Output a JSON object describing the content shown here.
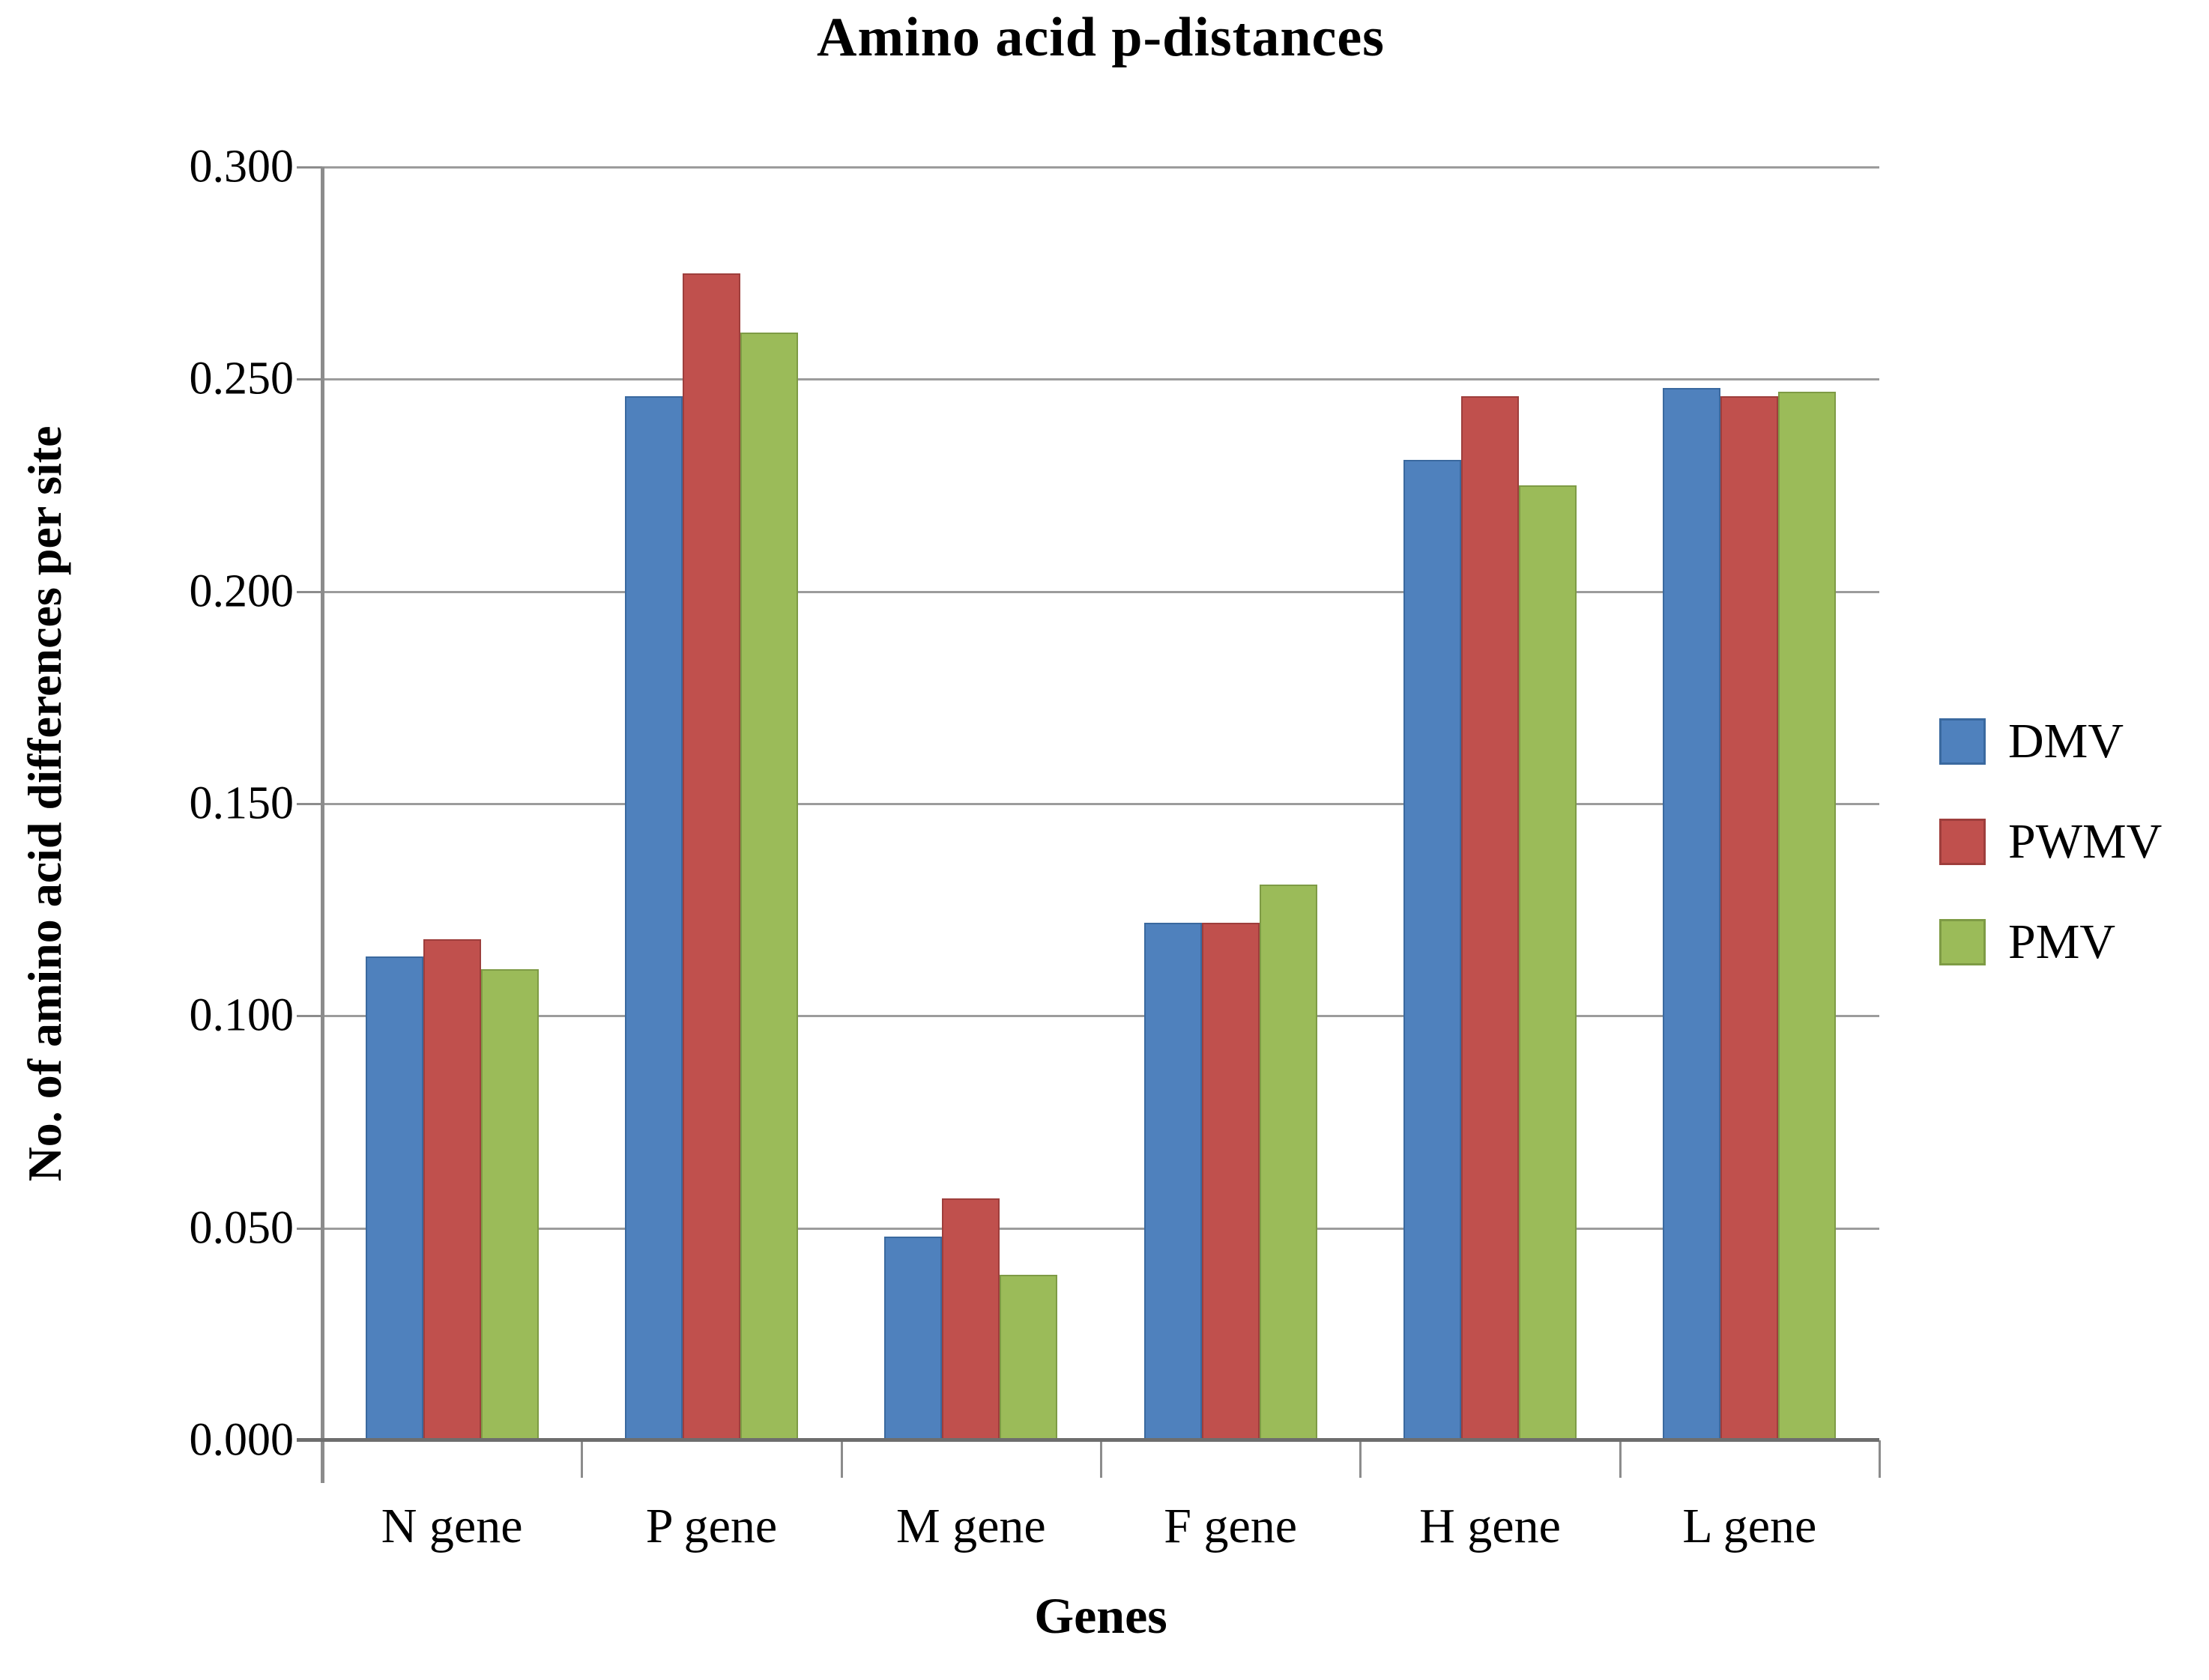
{
  "chart_data": {
    "type": "bar",
    "title": "Amino acid p-distances",
    "xlabel": "Genes",
    "ylabel": "No. of amino acid differences per site",
    "categories": [
      "N gene",
      "P gene",
      "M gene",
      "F gene",
      "H gene",
      "L gene"
    ],
    "series": [
      {
        "name": "DMV",
        "color": "#4F81BD",
        "border_color": "#3A699F",
        "values": [
          0.114,
          0.246,
          0.048,
          0.122,
          0.231,
          0.248
        ]
      },
      {
        "name": "PWMV",
        "color": "#C0504D",
        "border_color": "#9E3E3C",
        "values": [
          0.118,
          0.275,
          0.057,
          0.122,
          0.246,
          0.246
        ]
      },
      {
        "name": "PMV",
        "color": "#9BBB59",
        "border_color": "#7E9B45",
        "values": [
          0.111,
          0.261,
          0.039,
          0.131,
          0.225,
          0.247
        ]
      }
    ],
    "ylim": [
      0,
      0.3
    ],
    "ytick_step": 0.05,
    "ytick_labels": [
      "0.300",
      "0.250",
      "0.200",
      "0.150",
      "0.100",
      "0.050",
      "0.000"
    ],
    "grid": true,
    "legend_position": "right"
  },
  "styles": {
    "gridline_color": "#9c9c9c",
    "axis_color": "#8c8c8c",
    "x_axis_color": "#6e6e6e",
    "text_color": "#000000",
    "background": "#ffffff"
  }
}
